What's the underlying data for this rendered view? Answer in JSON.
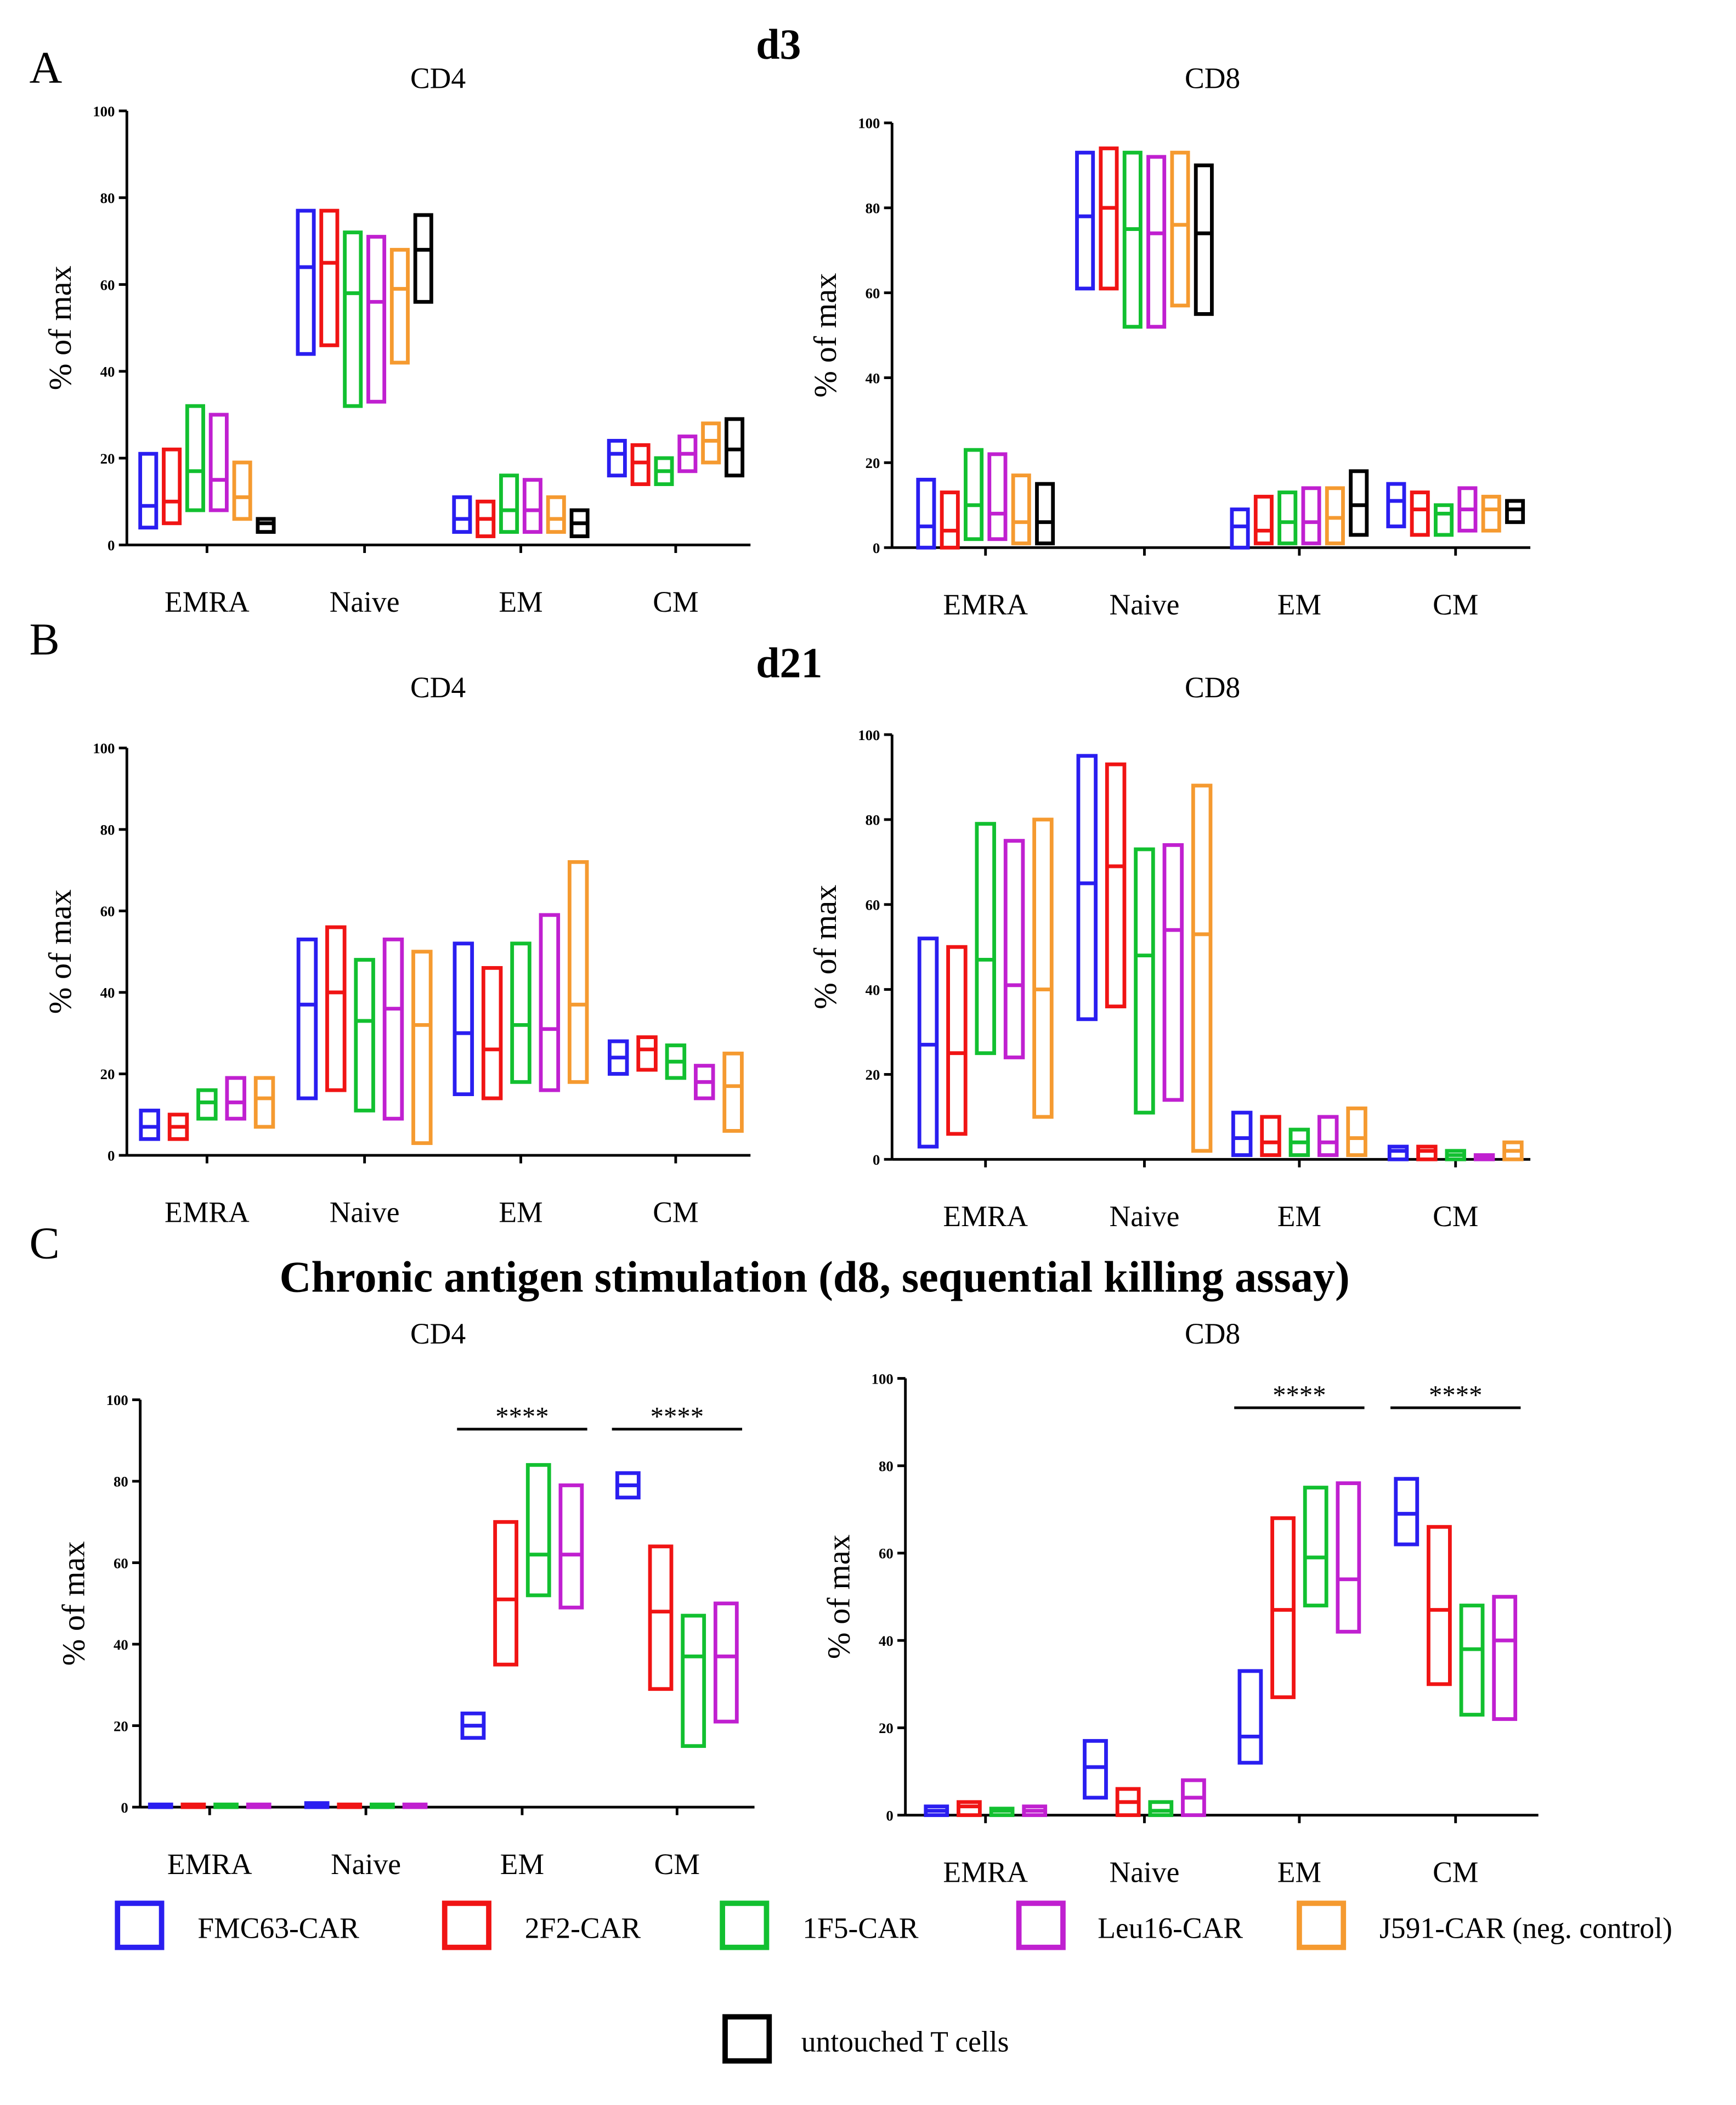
{
  "series": [
    {
      "name": "FMC63-CAR",
      "color": "#2a1ef0"
    },
    {
      "name": "2F2-CAR",
      "color": "#f01414"
    },
    {
      "name": "1F5-CAR",
      "color": "#12c030"
    },
    {
      "name": "Leu16-CAR",
      "color": "#c020d0"
    },
    {
      "name": "J591-CAR (neg. control)",
      "color": "#f59a30"
    },
    {
      "name": "untouched T cells",
      "color": "#000000"
    }
  ],
  "headings": {
    "A_letter": "A",
    "B_letter": "B",
    "C_letter": "C",
    "A_title": "d3",
    "B_title": "d21",
    "C_title": "Chronic antigen stimulation (d8, sequential killing assay)"
  },
  "chart_data": [
    {
      "id": "A-CD4",
      "type": "floating-bar",
      "title": "CD4",
      "ylabel": "% of max",
      "ylim": [
        0,
        100
      ],
      "yticks": [
        0,
        20,
        40,
        60,
        80,
        100
      ],
      "categories": [
        "EMRA",
        "Naive",
        "EM",
        "CM"
      ],
      "series_idx": [
        0,
        1,
        2,
        3,
        4,
        5
      ],
      "values": [
        [
          [
            4,
            9,
            21
          ],
          [
            5,
            10,
            22
          ],
          [
            8,
            17,
            32
          ],
          [
            8,
            15,
            30
          ],
          [
            6,
            11,
            19
          ],
          [
            3,
            5,
            6
          ]
        ],
        [
          [
            44,
            64,
            77
          ],
          [
            46,
            65,
            77
          ],
          [
            32,
            58,
            72
          ],
          [
            33,
            56,
            71
          ],
          [
            42,
            59,
            68
          ],
          [
            56,
            68,
            76
          ]
        ],
        [
          [
            3,
            6,
            11
          ],
          [
            2,
            6,
            10
          ],
          [
            3,
            8,
            16
          ],
          [
            3,
            8,
            15
          ],
          [
            3,
            6,
            11
          ],
          [
            2,
            5,
            8
          ]
        ],
        [
          [
            16,
            21,
            24
          ],
          [
            14,
            19,
            23
          ],
          [
            14,
            17,
            20
          ],
          [
            17,
            21,
            25
          ],
          [
            19,
            24,
            28
          ],
          [
            16,
            22,
            29
          ]
        ]
      ],
      "annotations": []
    },
    {
      "id": "A-CD8",
      "type": "floating-bar",
      "title": "CD8",
      "ylabel": "% of max",
      "ylim": [
        0,
        100
      ],
      "yticks": [
        0,
        20,
        40,
        60,
        80,
        100
      ],
      "categories": [
        "EMRA",
        "Naive",
        "EM",
        "CM"
      ],
      "series_idx": [
        0,
        1,
        2,
        3,
        4,
        5
      ],
      "values": [
        [
          [
            0,
            5,
            16
          ],
          [
            0,
            4,
            13
          ],
          [
            2,
            10,
            23
          ],
          [
            2,
            8,
            22
          ],
          [
            1,
            6,
            17
          ],
          [
            1,
            6,
            15
          ]
        ],
        [
          [
            61,
            78,
            93
          ],
          [
            61,
            80,
            94
          ],
          [
            52,
            75,
            93
          ],
          [
            52,
            74,
            92
          ],
          [
            57,
            76,
            93
          ],
          [
            55,
            74,
            90
          ]
        ],
        [
          [
            0,
            5,
            9
          ],
          [
            1,
            4,
            12
          ],
          [
            1,
            6,
            13
          ],
          [
            1,
            6,
            14
          ],
          [
            1,
            7,
            14
          ],
          [
            3,
            10,
            18
          ]
        ],
        [
          [
            5,
            11,
            15
          ],
          [
            3,
            9,
            13
          ],
          [
            3,
            8,
            10
          ],
          [
            4,
            9,
            14
          ],
          [
            4,
            9,
            12
          ],
          [
            6,
            9,
            11
          ]
        ]
      ],
      "annotations": []
    },
    {
      "id": "B-CD4",
      "type": "floating-bar",
      "title": "CD4",
      "ylabel": "% of max",
      "ylim": [
        0,
        100
      ],
      "yticks": [
        0,
        20,
        40,
        60,
        80,
        100
      ],
      "categories": [
        "EMRA",
        "Naive",
        "EM",
        "CM"
      ],
      "series_idx": [
        0,
        1,
        2,
        3,
        4
      ],
      "values": [
        [
          [
            4,
            7,
            11
          ],
          [
            4,
            7,
            10
          ],
          [
            9,
            13,
            16
          ],
          [
            9,
            13,
            19
          ],
          [
            7,
            14,
            19
          ]
        ],
        [
          [
            14,
            37,
            53
          ],
          [
            16,
            40,
            56
          ],
          [
            11,
            33,
            48
          ],
          [
            9,
            36,
            53
          ],
          [
            3,
            32,
            50
          ]
        ],
        [
          [
            15,
            30,
            52
          ],
          [
            14,
            26,
            46
          ],
          [
            18,
            32,
            52
          ],
          [
            16,
            31,
            59
          ],
          [
            18,
            37,
            72
          ]
        ],
        [
          [
            20,
            24,
            28
          ],
          [
            21,
            26,
            29
          ],
          [
            19,
            23,
            27
          ],
          [
            14,
            18,
            22
          ],
          [
            6,
            17,
            25
          ]
        ]
      ],
      "annotations": []
    },
    {
      "id": "B-CD8",
      "type": "floating-bar",
      "title": "CD8",
      "ylabel": "% of max",
      "ylim": [
        0,
        100
      ],
      "yticks": [
        0,
        20,
        40,
        60,
        80,
        100
      ],
      "categories": [
        "EMRA",
        "Naive",
        "EM",
        "CM"
      ],
      "series_idx": [
        0,
        1,
        2,
        3,
        4
      ],
      "values": [
        [
          [
            3,
            27,
            52
          ],
          [
            6,
            25,
            50
          ],
          [
            25,
            47,
            79
          ],
          [
            24,
            41,
            75
          ],
          [
            10,
            40,
            80
          ]
        ],
        [
          [
            33,
            65,
            95
          ],
          [
            36,
            69,
            93
          ],
          [
            11,
            48,
            73
          ],
          [
            14,
            54,
            74
          ],
          [
            2,
            53,
            88
          ]
        ],
        [
          [
            1,
            5,
            11
          ],
          [
            1,
            4,
            10
          ],
          [
            1,
            4,
            7
          ],
          [
            1,
            4,
            10
          ],
          [
            1,
            5,
            12
          ]
        ],
        [
          [
            0,
            2,
            3
          ],
          [
            0,
            2,
            3
          ],
          [
            0,
            1,
            2
          ],
          [
            0,
            0.3,
            1
          ],
          [
            0,
            2,
            4
          ]
        ]
      ],
      "annotations": []
    },
    {
      "id": "C-CD4",
      "type": "floating-bar",
      "title": "CD4",
      "ylabel": "% of max",
      "ylim": [
        0,
        100
      ],
      "yticks": [
        0,
        20,
        40,
        60,
        80,
        100
      ],
      "categories": [
        "EMRA",
        "Naive",
        "EM",
        "CM"
      ],
      "series_idx": [
        0,
        1,
        2,
        3
      ],
      "values": [
        [
          [
            0,
            0.3,
            0.6
          ],
          [
            0,
            0.3,
            0.5
          ],
          [
            0,
            0.2,
            0.4
          ],
          [
            0,
            0.3,
            0.5
          ]
        ],
        [
          [
            0,
            0.5,
            1
          ],
          [
            0,
            0.2,
            0.4
          ],
          [
            0,
            0.1,
            0.3
          ],
          [
            0,
            0.1,
            0.3
          ]
        ],
        [
          [
            17,
            20,
            23
          ],
          [
            35,
            51,
            70
          ],
          [
            52,
            62,
            84
          ],
          [
            49,
            62,
            79
          ]
        ],
        [
          [
            76,
            79,
            82
          ],
          [
            29,
            48,
            64
          ],
          [
            15,
            37,
            47
          ],
          [
            21,
            37,
            50
          ]
        ]
      ],
      "annotations": [
        {
          "text": "****",
          "category": "EM"
        },
        {
          "text": "****",
          "category": "CM"
        }
      ]
    },
    {
      "id": "C-CD8",
      "type": "floating-bar",
      "title": "CD8",
      "ylabel": "% of max",
      "ylim": [
        0,
        100
      ],
      "yticks": [
        0,
        20,
        40,
        60,
        80,
        100
      ],
      "categories": [
        "EMRA",
        "Naive",
        "EM",
        "CM"
      ],
      "series_idx": [
        0,
        1,
        2,
        3
      ],
      "values": [
        [
          [
            0,
            1,
            2
          ],
          [
            0,
            2,
            3
          ],
          [
            0,
            1,
            1.5
          ],
          [
            0,
            1,
            2
          ]
        ],
        [
          [
            4,
            11,
            17
          ],
          [
            0,
            3,
            6
          ],
          [
            0,
            1,
            3
          ],
          [
            0,
            4,
            8
          ]
        ],
        [
          [
            12,
            18,
            33
          ],
          [
            27,
            47,
            68
          ],
          [
            48,
            59,
            75
          ],
          [
            42,
            54,
            76
          ]
        ],
        [
          [
            62,
            69,
            77
          ],
          [
            30,
            47,
            66
          ],
          [
            23,
            38,
            48
          ],
          [
            22,
            40,
            50
          ]
        ]
      ],
      "annotations": [
        {
          "text": "****",
          "category": "EM"
        },
        {
          "text": "****",
          "category": "CM"
        }
      ]
    }
  ]
}
